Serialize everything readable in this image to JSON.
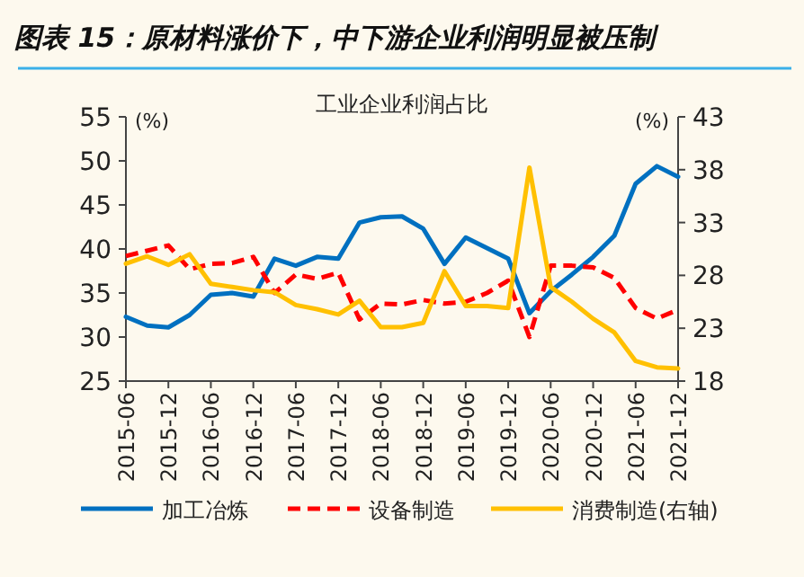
{
  "chart_data": {
    "type": "line",
    "title": "图表 15：原材料涨价下，中下游企业利润明显被压制",
    "subtitle": "工业企业利润占比",
    "ylabel": "(%)",
    "y2label": "(%)",
    "x": [
      "2015-06",
      "2015-09",
      "2015-12",
      "2016-03",
      "2016-06",
      "2016-09",
      "2016-12",
      "2017-03",
      "2017-06",
      "2017-09",
      "2017-12",
      "2018-03",
      "2018-06",
      "2018-09",
      "2018-12",
      "2019-03",
      "2019-06",
      "2019-09",
      "2019-12",
      "2020-03",
      "2020-06",
      "2020-09",
      "2020-12",
      "2021-03",
      "2021-06",
      "2021-09",
      "2021-12"
    ],
    "xlim": [
      "2015-06",
      "2021-12"
    ],
    "xticks": [
      "2015-06",
      "2015-12",
      "2016-06",
      "2016-12",
      "2017-06",
      "2017-12",
      "2018-06",
      "2018-12",
      "2019-06",
      "2019-12",
      "2020-06",
      "2020-12",
      "2021-06",
      "2021-12"
    ],
    "ylim": [
      25,
      55
    ],
    "yticks": [
      25,
      30,
      35,
      40,
      45,
      50,
      55
    ],
    "y2lim": [
      18,
      43
    ],
    "y2ticks": [
      18,
      23,
      28,
      33,
      38,
      43
    ],
    "series": [
      {
        "name": "加工冶炼",
        "color": "#0070c0",
        "line_style": "solid",
        "values": [
          32.3,
          31.3,
          31.1,
          32.5,
          34.8,
          35.0,
          34.6,
          38.9,
          38.1,
          39.1,
          38.9,
          43.0,
          43.6,
          43.7,
          42.3,
          38.3,
          41.3,
          40.1,
          38.9,
          32.7,
          35.2,
          37.1,
          39.1,
          41.5,
          47.4,
          49.4,
          48.2
        ]
      },
      {
        "name": "设备制造",
        "color": "#ff0000",
        "line_style": "dashed",
        "values": [
          39.2,
          39.8,
          40.4,
          37.7,
          38.3,
          38.4,
          39.1,
          35.0,
          37.1,
          36.6,
          37.3,
          32.0,
          33.8,
          33.7,
          34.2,
          33.8,
          34.0,
          35.0,
          36.4,
          30.0,
          38.1,
          38.1,
          37.9,
          36.7,
          33.3,
          32.1,
          33.1
        ]
      },
      {
        "name": "消费制造(右轴)",
        "color": "#ffc000",
        "line_style": "solid",
        "axis": "y2",
        "values": [
          29.1,
          29.8,
          29.0,
          30.0,
          27.2,
          26.9,
          26.6,
          26.4,
          25.2,
          24.8,
          24.3,
          25.6,
          23.1,
          23.1,
          23.5,
          28.4,
          25.1,
          25.1,
          24.9,
          38.2,
          26.9,
          25.5,
          23.9,
          22.6,
          19.9,
          19.3,
          19.2
        ]
      }
    ],
    "legend": "bottom",
    "grid": false,
    "marker": "none"
  }
}
